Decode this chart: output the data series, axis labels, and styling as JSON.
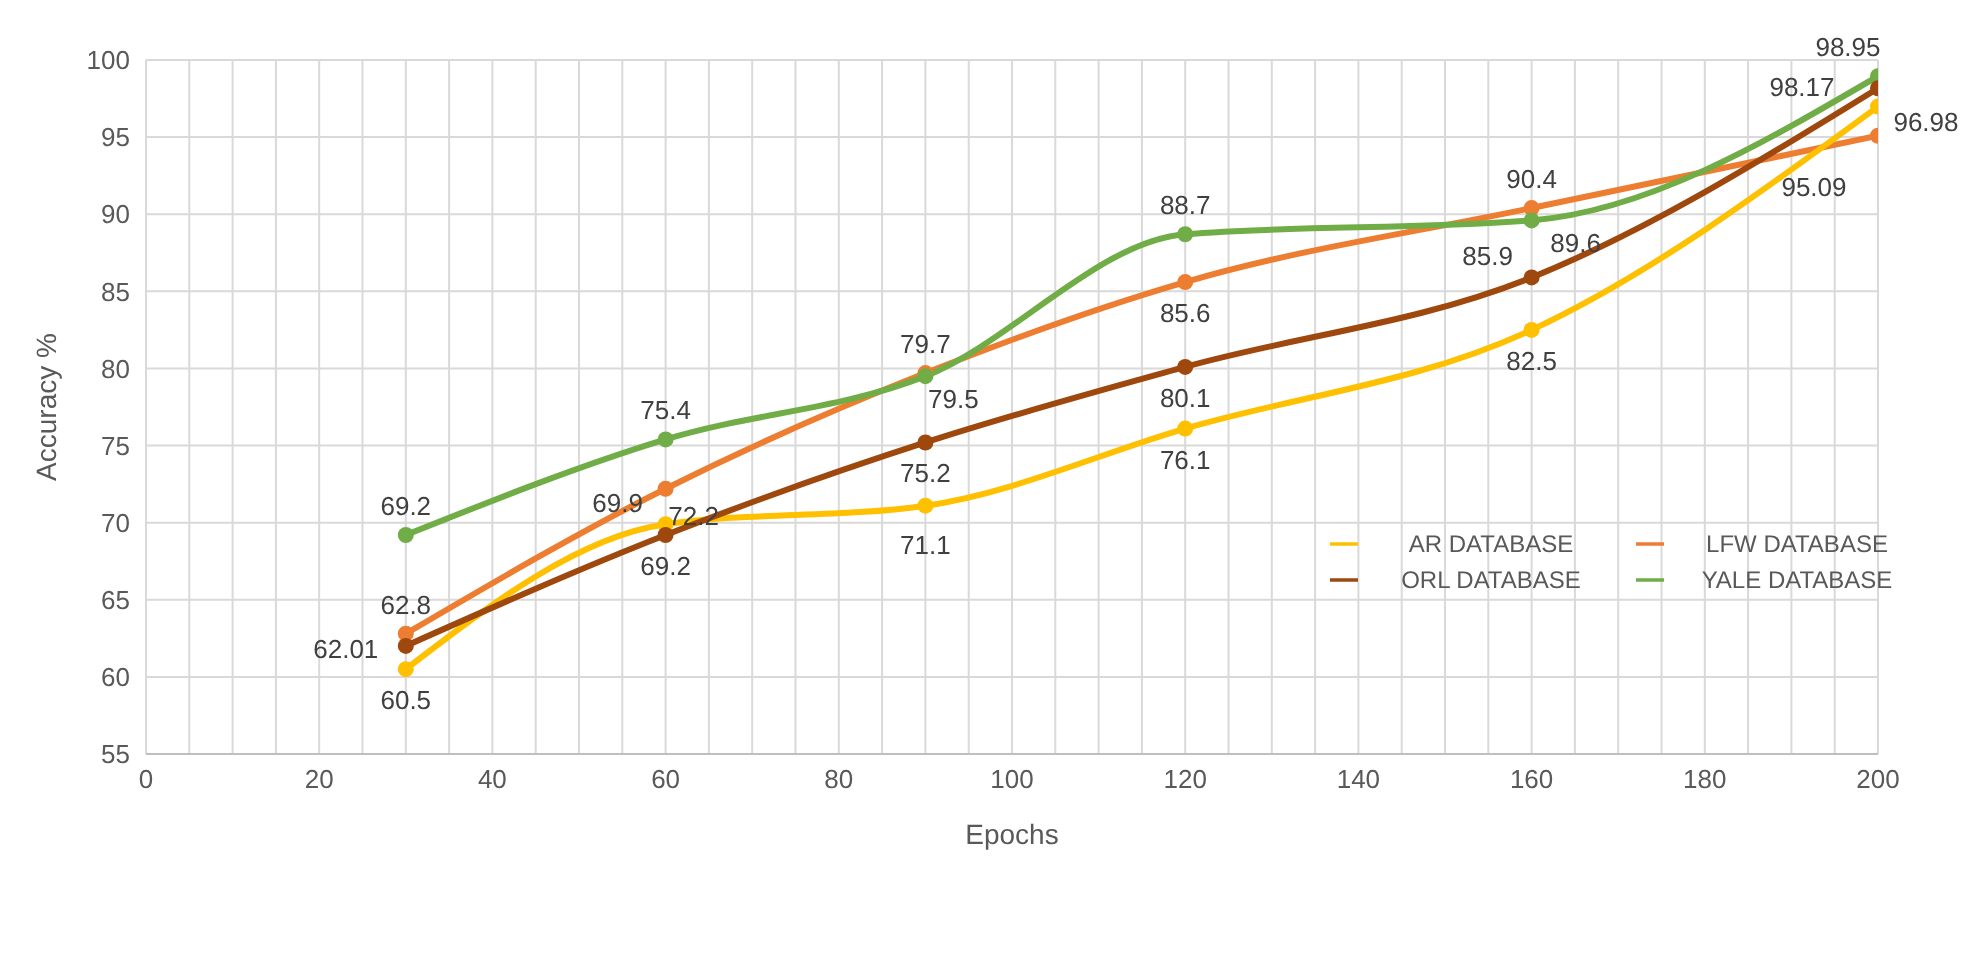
{
  "chart_data": {
    "type": "line",
    "xlabel": "Epochs",
    "ylabel": "Accuracy %",
    "x": [
      30,
      60,
      90,
      120,
      160,
      200
    ],
    "series": [
      {
        "name": "LFW DATABASE",
        "color": "#ed7d31",
        "values": [
          62.8,
          72.2,
          79.7,
          85.6,
          90.4,
          95.09
        ]
      },
      {
        "name": "AR DATABASE",
        "color": "#ffc000",
        "values": [
          60.5,
          69.9,
          71.1,
          76.1,
          82.5,
          96.98
        ]
      },
      {
        "name": "YALE DATABASE",
        "color": "#70ad47",
        "values": [
          69.2,
          75.4,
          79.5,
          88.7,
          89.6,
          98.95
        ]
      },
      {
        "name": "ORL DATABASE",
        "color": "#9e480e",
        "values": [
          62.01,
          69.2,
          75.2,
          80.1,
          85.9,
          98.17
        ]
      }
    ],
    "xlim": [
      0,
      200
    ],
    "xticks": [
      0,
      {
        "value": 5,
        "label": null
      },
      {
        "value": 10,
        "label": null
      },
      {
        "value": 15,
        "label": null
      },
      20,
      {
        "value": 25,
        "label": null
      },
      {
        "value": 30,
        "label": null
      },
      {
        "value": 35,
        "label": null
      },
      40,
      {
        "value": 45,
        "label": null
      },
      {
        "value": 50,
        "label": null
      },
      {
        "value": 55,
        "label": null
      },
      60,
      {
        "value": 65,
        "label": null
      },
      {
        "value": 70,
        "label": null
      },
      {
        "value": 75,
        "label": null
      },
      80,
      {
        "value": 85,
        "label": null
      },
      {
        "value": 90,
        "label": null
      },
      {
        "value": 95,
        "label": null
      },
      100,
      {
        "value": 105,
        "label": null
      },
      {
        "value": 110,
        "label": null
      },
      {
        "value": 115,
        "label": null
      },
      120,
      {
        "value": 125,
        "label": null
      },
      {
        "value": 130,
        "label": null
      },
      {
        "value": 135,
        "label": null
      },
      140,
      {
        "value": 145,
        "label": null
      },
      {
        "value": 150,
        "label": null
      },
      {
        "value": 155,
        "label": null
      },
      160,
      {
        "value": 165,
        "label": null
      },
      {
        "value": 170,
        "label": null
      },
      {
        "value": 175,
        "label": null
      },
      180,
      {
        "value": 185,
        "label": null
      },
      {
        "value": 190,
        "label": null
      },
      {
        "value": 195,
        "label": null
      },
      200
    ],
    "ylim": [
      55,
      100
    ],
    "yticks": [
      55,
      60,
      65,
      70,
      75,
      80,
      85,
      90,
      95,
      100
    ],
    "grid": true,
    "legend": "right",
    "marker": "circle",
    "line_style": "solid",
    "data_labels": true
  }
}
